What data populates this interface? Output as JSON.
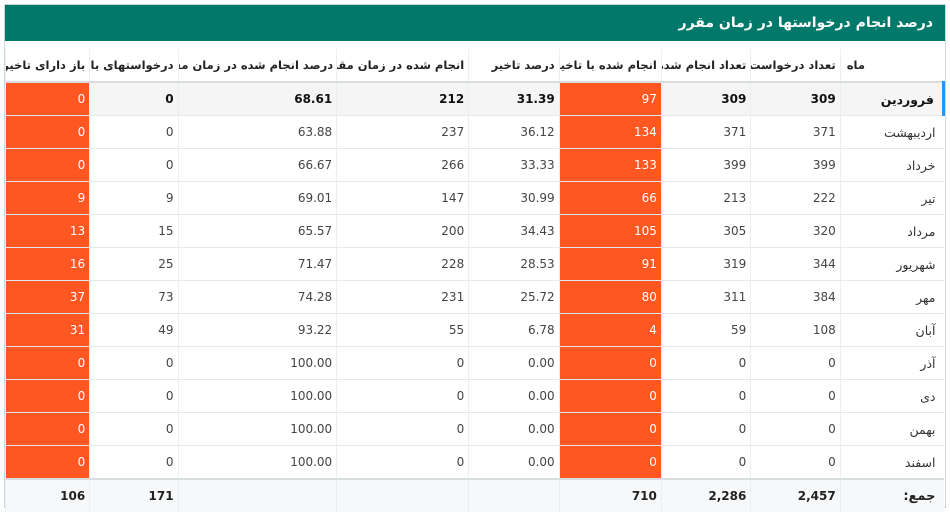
{
  "title": "درصد انجام درخواستها در زمان مقرر",
  "columns": [
    "ماه",
    "تعداد درخواست",
    "تعداد انجام شده",
    "انجام شده با تاخیر",
    "درصد تاخیر",
    "انجام شده در زمان مقرر",
    "درصد انجام شده در زمان مقرر",
    "درخواستهای باز",
    "باز دارای تاخیر"
  ],
  "rows": [
    {
      "month": "فروردین",
      "requests": "309",
      "done": "309",
      "late": "97",
      "late_pct": "31.39",
      "on_time": "212",
      "on_time_pct": "68.61",
      "open": "0",
      "open_late": "0"
    },
    {
      "month": "اردیبهشت",
      "requests": "371",
      "done": "371",
      "late": "134",
      "late_pct": "36.12",
      "on_time": "237",
      "on_time_pct": "63.88",
      "open": "0",
      "open_late": "0"
    },
    {
      "month": "خرداد",
      "requests": "399",
      "done": "399",
      "late": "133",
      "late_pct": "33.33",
      "on_time": "266",
      "on_time_pct": "66.67",
      "open": "0",
      "open_late": "0"
    },
    {
      "month": "تیر",
      "requests": "222",
      "done": "213",
      "late": "66",
      "late_pct": "30.99",
      "on_time": "147",
      "on_time_pct": "69.01",
      "open": "9",
      "open_late": "9"
    },
    {
      "month": "مرداد",
      "requests": "320",
      "done": "305",
      "late": "105",
      "late_pct": "34.43",
      "on_time": "200",
      "on_time_pct": "65.57",
      "open": "15",
      "open_late": "13"
    },
    {
      "month": "شهریور",
      "requests": "344",
      "done": "319",
      "late": "91",
      "late_pct": "28.53",
      "on_time": "228",
      "on_time_pct": "71.47",
      "open": "25",
      "open_late": "16"
    },
    {
      "month": "مهر",
      "requests": "384",
      "done": "311",
      "late": "80",
      "late_pct": "25.72",
      "on_time": "231",
      "on_time_pct": "74.28",
      "open": "73",
      "open_late": "37"
    },
    {
      "month": "آبان",
      "requests": "108",
      "done": "59",
      "late": "4",
      "late_pct": "6.78",
      "on_time": "55",
      "on_time_pct": "93.22",
      "open": "49",
      "open_late": "31"
    },
    {
      "month": "آذر",
      "requests": "0",
      "done": "0",
      "late": "0",
      "late_pct": "0.00",
      "on_time": "0",
      "on_time_pct": "100.00",
      "open": "0",
      "open_late": "0"
    },
    {
      "month": "دی",
      "requests": "0",
      "done": "0",
      "late": "0",
      "late_pct": "0.00",
      "on_time": "0",
      "on_time_pct": "100.00",
      "open": "0",
      "open_late": "0"
    },
    {
      "month": "بهمن",
      "requests": "0",
      "done": "0",
      "late": "0",
      "late_pct": "0.00",
      "on_time": "0",
      "on_time_pct": "100.00",
      "open": "0",
      "open_late": "0"
    },
    {
      "month": "اسفند",
      "requests": "0",
      "done": "0",
      "late": "0",
      "late_pct": "0.00",
      "on_time": "0",
      "on_time_pct": "100.00",
      "open": "0",
      "open_late": "0"
    }
  ],
  "totals": {
    "label": "جمع:",
    "requests": "2,457",
    "done": "2,286",
    "late": "710",
    "late_pct": "",
    "on_time": "",
    "on_time_pct": "",
    "open": "171",
    "open_late": "106"
  },
  "highlight_color": "#ff5722",
  "header_color": "#00796b"
}
